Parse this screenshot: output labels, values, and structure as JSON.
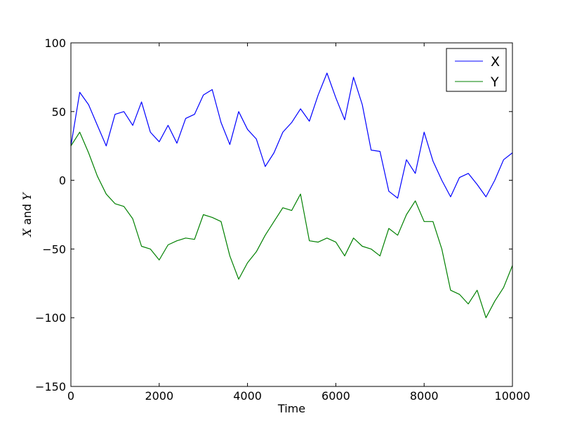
{
  "chart_data": {
    "type": "line",
    "title": "",
    "xlabel": "Time",
    "ylabel_parts": [
      "X",
      " and ",
      "Y"
    ],
    "xlim": [
      0,
      10000
    ],
    "ylim": [
      -150,
      100
    ],
    "xticks": [
      0,
      2000,
      4000,
      6000,
      8000,
      10000
    ],
    "yticks": [
      -150,
      -100,
      -50,
      0,
      50,
      100
    ],
    "xtick_labels": [
      "0",
      "2000",
      "4000",
      "6000",
      "8000",
      "10000"
    ],
    "ytick_labels": [
      "−150",
      "−100",
      "−50",
      "0",
      "50",
      "100"
    ],
    "grid": false,
    "legend_position": "top-right",
    "x": [
      0,
      200,
      400,
      600,
      800,
      1000,
      1200,
      1400,
      1600,
      1800,
      2000,
      2200,
      2400,
      2600,
      2800,
      3000,
      3200,
      3400,
      3600,
      3800,
      4000,
      4200,
      4400,
      4600,
      4800,
      5000,
      5200,
      5400,
      5600,
      5800,
      6000,
      6200,
      6400,
      6600,
      6800,
      7000,
      7200,
      7400,
      7600,
      7800,
      8000,
      8200,
      8400,
      8600,
      8800,
      9000,
      9200,
      9400,
      9600,
      9800,
      10000
    ],
    "series": [
      {
        "name": "X",
        "color": "#0000ff",
        "values": [
          25,
          64,
          55,
          40,
          25,
          48,
          50,
          40,
          57,
          35,
          28,
          40,
          27,
          45,
          48,
          62,
          66,
          42,
          26,
          50,
          37,
          30,
          10,
          20,
          35,
          42,
          52,
          43,
          62,
          78,
          60,
          44,
          75,
          55,
          22,
          21,
          -8,
          -13,
          15,
          5,
          35,
          14,
          0,
          -12,
          2,
          5,
          -3,
          -12,
          0,
          15,
          20
        ]
      },
      {
        "name": "Y",
        "color": "#008000",
        "values": [
          25,
          35,
          20,
          3,
          -10,
          -17,
          -19,
          -28,
          -48,
          -50,
          -58,
          -47,
          -44,
          -42,
          -43,
          -25,
          -27,
          -30,
          -55,
          -72,
          -60,
          -52,
          -40,
          -30,
          -20,
          -22,
          -10,
          -44,
          -45,
          -42,
          -45,
          -55,
          -42,
          -48,
          -50,
          -55,
          -35,
          -40,
          -25,
          -15,
          -30,
          -30,
          -50,
          -80,
          -83,
          -90,
          -80,
          -100,
          -88,
          -78,
          -62
        ]
      }
    ]
  }
}
